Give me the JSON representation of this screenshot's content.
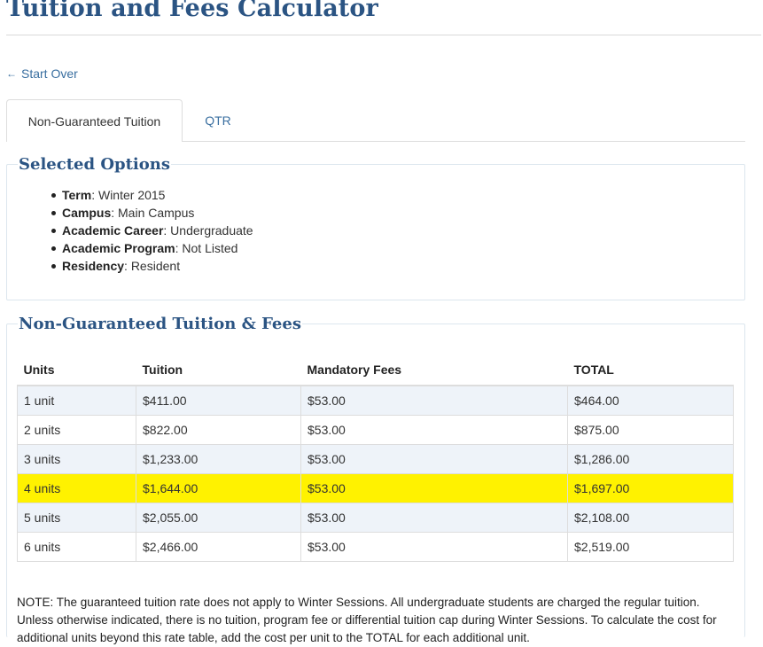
{
  "header": {
    "title": "Tuition and Fees Calculator"
  },
  "nav": {
    "start_over": "Start Over",
    "start_over_icon": "left-arrow-icon"
  },
  "tabs": [
    {
      "label": "Non-Guaranteed Tuition",
      "active": true
    },
    {
      "label": "QTR",
      "active": false
    }
  ],
  "options": {
    "heading": "Selected Options",
    "items": [
      {
        "label": "Term",
        "value": ": Winter 2015"
      },
      {
        "label": "Campus",
        "value": ": Main Campus"
      },
      {
        "label": "Academic Career",
        "value": ": Undergraduate"
      },
      {
        "label": "Academic Program",
        "value": ": Not Listed"
      },
      {
        "label": "Residency",
        "value": ": Resident"
      }
    ]
  },
  "fees": {
    "heading": "Non-Guaranteed Tuition & Fees",
    "columns": [
      "Units",
      "Tuition",
      "Mandatory Fees",
      "TOTAL"
    ],
    "rows": [
      [
        "1 unit",
        "$411.00",
        "$53.00",
        "$464.00"
      ],
      [
        "2 units",
        "$822.00",
        "$53.00",
        "$875.00"
      ],
      [
        "3 units",
        "$1,233.00",
        "$53.00",
        "$1,286.00"
      ],
      [
        "4 units",
        "$1,644.00",
        "$53.00",
        "$1,697.00"
      ],
      [
        "5 units",
        "$2,055.00",
        "$53.00",
        "$2,108.00"
      ],
      [
        "6 units",
        "$2,466.00",
        "$53.00",
        "$2,519.00"
      ]
    ],
    "highlighted_row": 3,
    "highlight_color": "#fff200",
    "note": "NOTE: The guaranteed tuition rate does not apply to Winter Sessions. All undergraduate students are charged the regular tuition. Unless otherwise indicated, there is no tuition, program fee or differential tuition cap during Winter Sessions. To calculate the cost for additional units beyond this rate table, add the cost per unit to the TOTAL for each additional unit."
  },
  "colors": {
    "heading": "#2b5483",
    "link": "#3a6fa0",
    "stripe": "#eef3f9"
  }
}
